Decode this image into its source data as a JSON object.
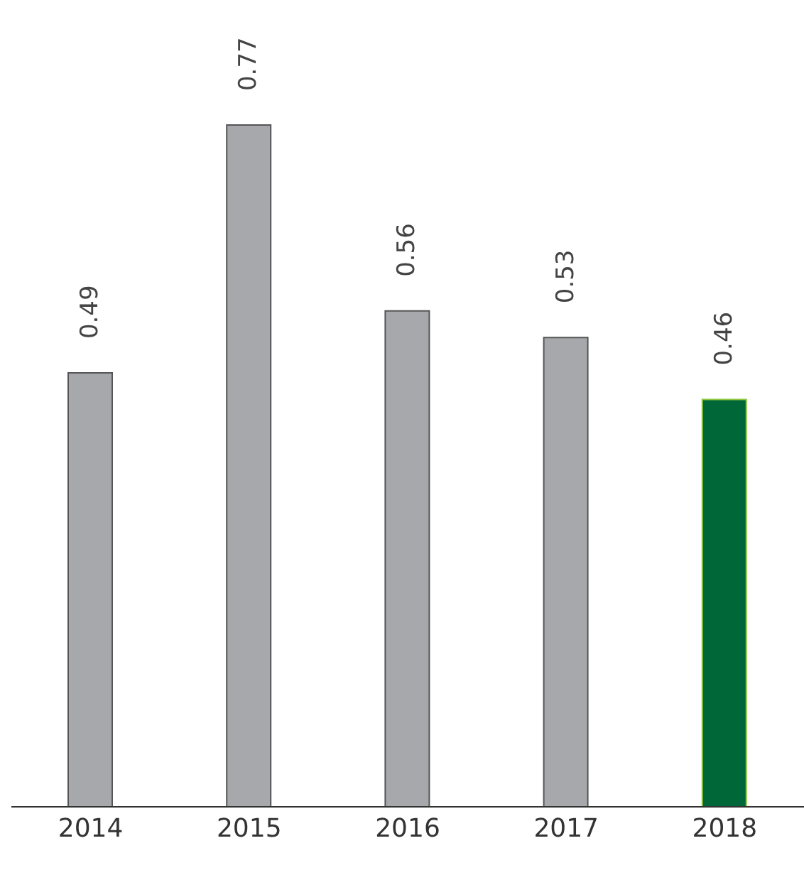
{
  "chart_data": {
    "type": "bar",
    "categories": [
      "2014",
      "2015",
      "2016",
      "2017",
      "2018"
    ],
    "values": [
      0.49,
      0.77,
      0.56,
      0.53,
      0.46
    ],
    "colors": [
      "#a6a8ab",
      "#a6a8ab",
      "#a6a8ab",
      "#a6a8ab",
      "#006838"
    ],
    "data_labels": true
  }
}
